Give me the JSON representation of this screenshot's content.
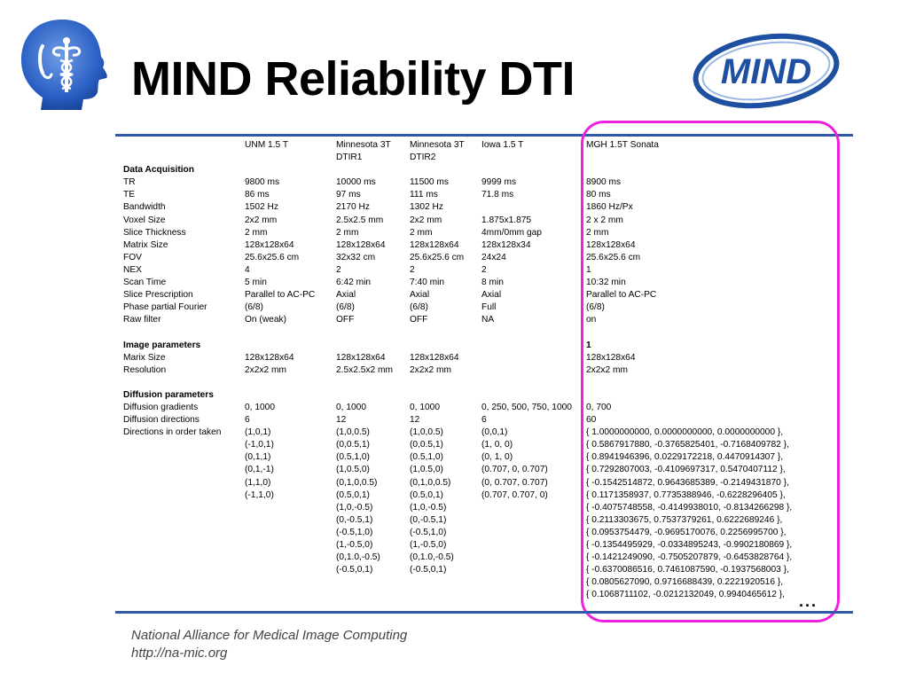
{
  "title": "MIND Reliability DTI",
  "logo_right_text": "MIND",
  "footer": {
    "line1": "National Alliance for Medical Image Computing",
    "line2": "http://na-mic.org"
  },
  "ellipsis": "...",
  "colors": {
    "rule": "#2f5aa8",
    "highlight": "#ee22dd",
    "logo_blue": "#1e4fa0"
  },
  "icons": {
    "left_logo": "na-mic-head-caduceus-logo",
    "right_logo": "mind-oval-logo"
  },
  "table": {
    "rows": [
      {
        "bold": false,
        "cells": [
          "",
          "UNM 1.5 T",
          "Minnesota 3T",
          "Minnesota 3T",
          "Iowa 1.5 T",
          "MGH 1.5T Sonata"
        ]
      },
      {
        "bold": false,
        "cells": [
          "",
          "",
          "DTIR1",
          "DTIR2",
          "",
          ""
        ]
      },
      {
        "bold": true,
        "cells": [
          "Data Acquisition",
          "",
          "",
          "",
          "",
          ""
        ]
      },
      {
        "bold": false,
        "cells": [
          "TR",
          "9800 ms",
          "10000 ms",
          "11500 ms",
          "9999 ms",
          "8900 ms"
        ]
      },
      {
        "bold": false,
        "cells": [
          "TE",
          "86 ms",
          "97 ms",
          "111 ms",
          "71.8 ms",
          "80 ms"
        ]
      },
      {
        "bold": false,
        "cells": [
          "Bandwidth",
          "1502 Hz",
          "2170 Hz",
          "1302 Hz",
          "",
          "1860 Hz/Px"
        ]
      },
      {
        "bold": false,
        "cells": [
          "Voxel Size",
          "2x2 mm",
          "2.5x2.5 mm",
          "2x2 mm",
          "1.875x1.875",
          "2 x 2 mm"
        ]
      },
      {
        "bold": false,
        "cells": [
          "Slice Thickness",
          "2 mm",
          "2 mm",
          "2 mm",
          "4mm/0mm gap",
          "2 mm"
        ]
      },
      {
        "bold": false,
        "cells": [
          "Matrix Size",
          "128x128x64",
          "128x128x64",
          "128x128x64",
          "128x128x34",
          "128x128x64"
        ]
      },
      {
        "bold": false,
        "cells": [
          "FOV",
          "25.6x25.6 cm",
          "32x32 cm",
          "25.6x25.6 cm",
          "24x24",
          "25.6x25.6 cm"
        ]
      },
      {
        "bold": false,
        "cells": [
          "NEX",
          "4",
          "2",
          "2",
          "2",
          "1"
        ]
      },
      {
        "bold": false,
        "cells": [
          "Scan Time",
          "5 min",
          "6:42 min",
          "7:40 min",
          "8 min",
          "10:32 min"
        ]
      },
      {
        "bold": false,
        "cells": [
          "Slice Prescription",
          "Parallel to AC-PC",
          "Axial",
          "Axial",
          "Axial",
          "Parallel to AC-PC"
        ]
      },
      {
        "bold": false,
        "cells": [
          "Phase partial Fourier",
          "(6/8)",
          "(6/8)",
          "(6/8)",
          "Full",
          "(6/8)"
        ]
      },
      {
        "bold": false,
        "cells": [
          "Raw filter",
          "On (weak)",
          "OFF",
          "OFF",
          "NA",
          "on"
        ]
      },
      {
        "bold": false,
        "cells": [
          "",
          "",
          "",
          "",
          "",
          ""
        ]
      },
      {
        "bold": true,
        "cells": [
          "Image parameters",
          "",
          "",
          "",
          "",
          "1"
        ]
      },
      {
        "bold": false,
        "cells": [
          "Marix Size",
          "128x128x64",
          "128x128x64",
          "128x128x64",
          "",
          "128x128x64"
        ]
      },
      {
        "bold": false,
        "cells": [
          "Resolution",
          "2x2x2 mm",
          "2.5x2.5x2 mm",
          "2x2x2 mm",
          "",
          "2x2x2 mm"
        ]
      },
      {
        "bold": false,
        "cells": [
          "",
          "",
          "",
          "",
          "",
          ""
        ]
      },
      {
        "bold": true,
        "cells": [
          "Diffusion parameters",
          "",
          "",
          "",
          "",
          ""
        ]
      },
      {
        "bold": false,
        "cells": [
          "Diffusion gradients",
          "0, 1000",
          "0, 1000",
          "0, 1000",
          "0, 250, 500, 750, 1000",
          "0, 700"
        ]
      },
      {
        "bold": false,
        "cells": [
          "Diffusion directions",
          "6",
          "12",
          "12",
          "6",
          "60"
        ]
      },
      {
        "bold": false,
        "cells": [
          "Directions in order taken",
          "(1,0,1)",
          "(1,0,0.5)",
          "(1,0,0.5)",
          "(0,0,1)",
          "{   1.0000000000,  0.0000000000,  0.0000000000 },"
        ]
      },
      {
        "bold": false,
        "cells": [
          "",
          "(-1,0,1)",
          "(0,0.5,1)",
          "(0,0.5,1)",
          "(1, 0, 0)",
          "{   0.5867917880, -0.3765825401, -0.7168409782 },"
        ]
      },
      {
        "bold": false,
        "cells": [
          "",
          "(0,1,1)",
          "(0.5,1,0)",
          "(0.5,1,0)",
          "(0, 1, 0)",
          "{   0.8941946396,  0.0229172218,  0.4470914307 },"
        ]
      },
      {
        "bold": false,
        "cells": [
          "",
          "(0,1,-1)",
          "(1,0.5,0)",
          "(1,0.5,0)",
          "(0.707, 0, 0.707)",
          "{   0.7292807003, -0.4109697317,  0.5470407112 },"
        ]
      },
      {
        "bold": false,
        "cells": [
          "",
          "(1,1,0)",
          "(0,1,0,0.5)",
          "(0,1,0,0.5)",
          "(0, 0.707, 0.707)",
          "{  -0.1542514872,  0.9643685389, -0.2149431870 },"
        ]
      },
      {
        "bold": false,
        "cells": [
          "",
          "(-1,1,0)",
          "(0.5,0,1)",
          "(0.5,0,1)",
          "(0.707, 0.707, 0)",
          "{   0.1171358937,  0.7735388946, -0.6228296405 },"
        ]
      },
      {
        "bold": false,
        "cells": [
          "",
          "",
          "(1,0,-0.5)",
          "(1,0,-0.5)",
          "",
          "{  -0.4075748558, -0.4149938010, -0.8134266298 },"
        ]
      },
      {
        "bold": false,
        "cells": [
          "",
          "",
          "(0,-0.5,1)",
          "(0,-0.5,1)",
          "",
          "{   0.2113303675,  0.7537379261,  0.6222689246 },"
        ]
      },
      {
        "bold": false,
        "cells": [
          "",
          "",
          "(-0.5,1,0)",
          "(-0.5,1,0)",
          "",
          "{   0.0953754479, -0.9695170076,  0.2256995700 },"
        ]
      },
      {
        "bold": false,
        "cells": [
          "",
          "",
          "(1,-0.5,0)",
          "(1,-0.5,0)",
          "",
          "{  -0.1354495929, -0.0334895243, -0.9902180869 },"
        ]
      },
      {
        "bold": false,
        "cells": [
          "",
          "",
          "(0,1.0,-0.5)",
          "(0,1.0,-0.5)",
          "",
          "{  -0.1421249090, -0.7505207879, -0.6453828764 },"
        ]
      },
      {
        "bold": false,
        "cells": [
          "",
          "",
          "(-0.5,0,1)",
          "(-0.5,0,1)",
          "",
          "{  -0.6370086516,  0.7461087590, -0.1937568003 },"
        ]
      },
      {
        "bold": false,
        "cells": [
          "",
          "",
          "",
          "",
          "",
          "{   0.0805627090,  0.9716688439,  0.2221920516 },"
        ]
      },
      {
        "bold": false,
        "cells": [
          "",
          "",
          "",
          "",
          "",
          "{   0.1068711102, -0.0212132049,  0.9940465612 },"
        ]
      }
    ]
  }
}
